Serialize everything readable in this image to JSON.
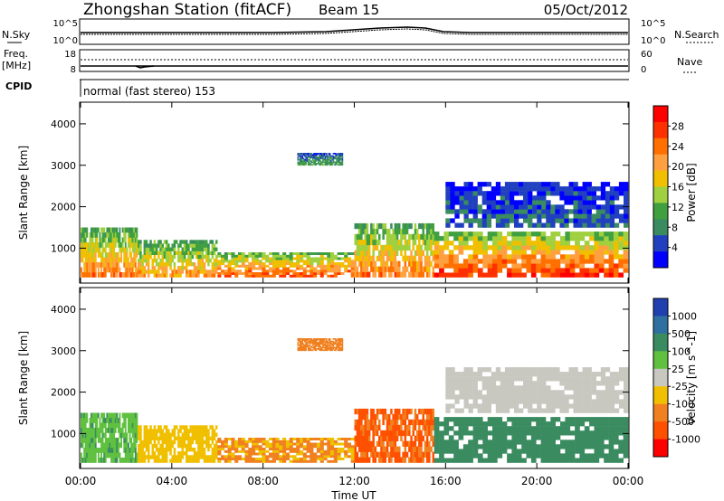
{
  "header": {
    "station": "Zhongshan Station (fitACF)",
    "beam": "Beam 15",
    "date": "05/Oct/2012"
  },
  "nsky_panel": {
    "left_label": "N.Sky",
    "left_ticks": [
      "10^5",
      "10^0"
    ],
    "right_label": "N.Search",
    "right_ticks": [
      "10^5",
      "10^0"
    ]
  },
  "freq_panel": {
    "left_label_1": "Freq.",
    "left_label_2": "[MHz]",
    "left_ticks": [
      "18",
      "8"
    ],
    "right_label": "Nave",
    "right_ticks": [
      "60",
      "0"
    ]
  },
  "cpid": {
    "label": "CPID",
    "mode": "normal (fast stereo) 153"
  },
  "power_panel": {
    "ylabel": "Slant Range [km]",
    "yticks": [
      "4000",
      "3000",
      "2000",
      "1000"
    ],
    "colorbar_label": "Power [dB]",
    "colorbar_ticks": [
      "28",
      "24",
      "20",
      "16",
      "12",
      "8",
      "4"
    ],
    "colorbar_colors": [
      "#ff0000",
      "#ff3000",
      "#ff7000",
      "#ffa040",
      "#f0c000",
      "#a0d040",
      "#40a040",
      "#3a8c60",
      "#2040c0",
      "#0000ff"
    ]
  },
  "velocity_panel": {
    "ylabel": "Slant Range [km]",
    "yticks": [
      "4000",
      "3000",
      "2000",
      "1000"
    ],
    "colorbar_label": "Velocity [m s^-1]",
    "colorbar_ticks": [
      "1000",
      "500",
      "100",
      "25",
      "-25",
      "-100",
      "-500",
      "-1000"
    ],
    "colorbar_colors": [
      "#2040b0",
      "#3070a0",
      "#3a8c60",
      "#60c040",
      "#c8c8c0",
      "#f0c000",
      "#f08020",
      "#ff5000",
      "#ff0000"
    ]
  },
  "xaxis": {
    "label": "Time UT",
    "ticks": [
      "00:00",
      "04:00",
      "08:00",
      "12:00",
      "16:00",
      "20:00",
      "00:00"
    ]
  },
  "chart_data": {
    "type": "heatmap",
    "x_unit": "hours UT",
    "x_range": [
      0,
      24
    ],
    "y_unit": "km",
    "y_range": [
      180,
      4500
    ],
    "power_ylim_db": [
      0,
      30
    ],
    "velocity_range": [
      -1000,
      1000
    ],
    "echo_regions": [
      {
        "t0": 0.0,
        "t1": 2.5,
        "r0": 300,
        "r1": 1500,
        "power": 22,
        "velocity": 80
      },
      {
        "t0": 2.5,
        "t1": 6.0,
        "r0": 300,
        "r1": 1200,
        "power": 20,
        "velocity": -60
      },
      {
        "t0": 6.0,
        "t1": 12.0,
        "r0": 300,
        "r1": 900,
        "power": 24,
        "velocity": -120
      },
      {
        "t0": 12.0,
        "t1": 15.5,
        "r0": 300,
        "r1": 1600,
        "power": 22,
        "velocity": -600
      },
      {
        "t0": 15.5,
        "t1": 24.0,
        "r0": 300,
        "r1": 1400,
        "power": 26,
        "velocity": 300
      },
      {
        "t0": 16.0,
        "t1": 24.0,
        "r0": 1500,
        "r1": 2600,
        "power": 6,
        "velocity": 5
      },
      {
        "t0": 9.5,
        "t1": 11.5,
        "r0": 3000,
        "r1": 3300,
        "power": 10,
        "velocity": -200
      }
    ]
  }
}
